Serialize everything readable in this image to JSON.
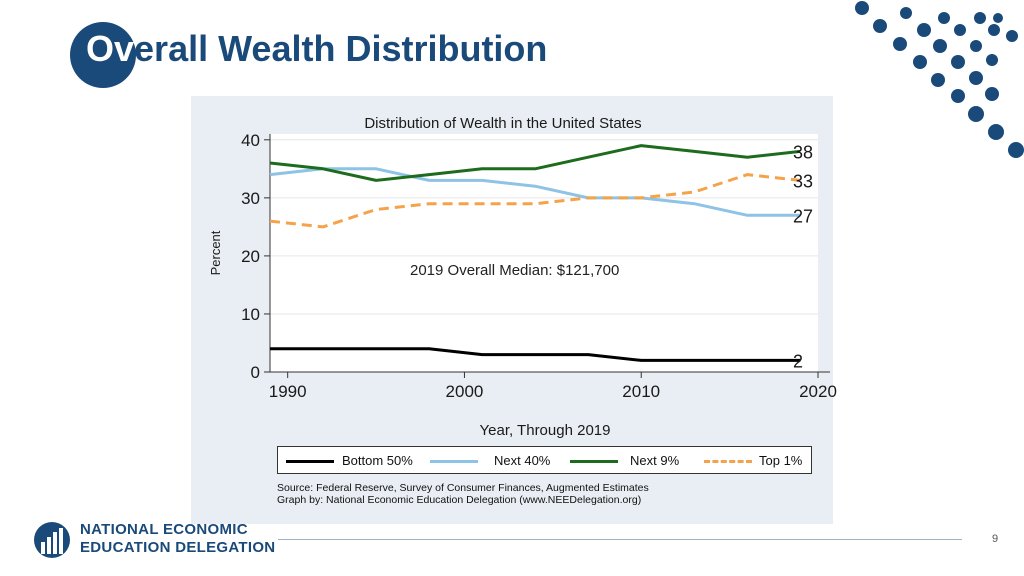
{
  "slide": {
    "title_first": "Ov",
    "title_rest": "erall Wealth Distribution",
    "page_number": "9"
  },
  "logo": {
    "line1": "NATIONAL ECONOMIC",
    "line2": "EDUCATION DELEGATION"
  },
  "annotation": "2019 Overall Median:  $121,700",
  "colors": {
    "brand": "#1a4a7a",
    "bottom50": "#000000",
    "next40": "#8ec3e6",
    "next9": "#1d6b1d",
    "top1": "#f5a34a"
  },
  "chart_data": {
    "type": "line",
    "title": "Distribution of Wealth in the United States",
    "xlabel": "Year, Through 2019",
    "ylabel": "Percent",
    "xlim": [
      1989,
      2020
    ],
    "ylim": [
      0,
      41
    ],
    "xticks": [
      1990,
      2000,
      2010,
      2020
    ],
    "yticks": [
      0,
      10,
      20,
      30,
      40
    ],
    "grid": "horizontal",
    "x": [
      1989,
      1992,
      1995,
      1998,
      2001,
      2004,
      2007,
      2010,
      2013,
      2016,
      2019
    ],
    "series": [
      {
        "name": "Bottom 50%",
        "color": "#000000",
        "dash": false,
        "values": [
          4,
          4,
          4,
          4,
          3,
          3,
          3,
          2,
          2,
          2,
          2
        ],
        "end_label": "2"
      },
      {
        "name": "Next 40%",
        "color": "#8ec3e6",
        "dash": false,
        "values": [
          34,
          35,
          35,
          33,
          33,
          32,
          30,
          30,
          29,
          27,
          27
        ],
        "end_label": "27"
      },
      {
        "name": "Next 9%",
        "color": "#1d6b1d",
        "dash": false,
        "values": [
          36,
          35,
          33,
          34,
          35,
          35,
          37,
          39,
          38,
          37,
          38
        ],
        "end_label": "38"
      },
      {
        "name": "Top 1%",
        "color": "#f5a34a",
        "dash": true,
        "values": [
          26,
          25,
          28,
          29,
          29,
          29,
          30,
          30,
          31,
          34,
          33
        ],
        "end_label": "33"
      }
    ],
    "legend": [
      "Bottom 50%",
      "Next 40%",
      "Next 9%",
      "Top 1%"
    ],
    "legend_position": "bottom",
    "source_line1": "Source: Federal Reserve, Survey of Consumer Finances, Augmented Estimates",
    "source_line2": "Graph by: National Economic Education Delegation (www.NEEDelegation.org)"
  }
}
